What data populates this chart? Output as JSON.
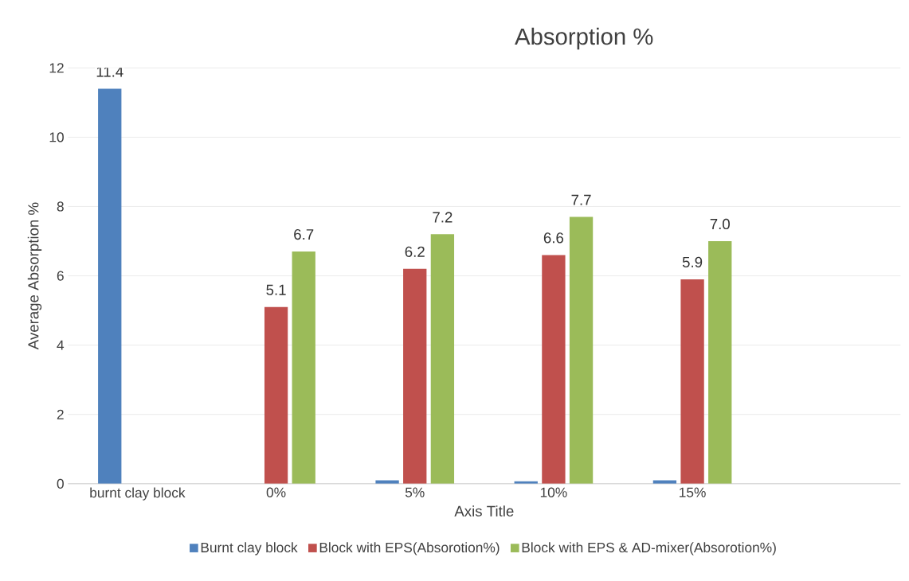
{
  "chart_data": {
    "type": "bar",
    "title": "Absorption %",
    "xlabel": "Axis Title",
    "ylabel": "Average Absorption %",
    "categories": [
      "burnt clay block",
      "0%",
      "5%",
      "10%",
      "15%",
      null
    ],
    "series": [
      {
        "name": "Burnt clay block",
        "color": "#4f81bd",
        "values": [
          11.4,
          null,
          0.1,
          0.07,
          0.1,
          null
        ],
        "value_labels": [
          "11.4",
          null,
          null,
          null,
          null,
          null
        ]
      },
      {
        "name": "Block with EPS(Absorotion%)",
        "color": "#c0504d",
        "values": [
          null,
          5.1,
          6.2,
          6.6,
          5.9,
          null
        ],
        "value_labels": [
          null,
          "5.1",
          "6.2",
          "6.6",
          "5.9",
          null
        ]
      },
      {
        "name": "Block with EPS & AD-mixer(Absorotion%)",
        "color": "#9bbb59",
        "values": [
          null,
          6.7,
          7.2,
          7.7,
          7.0,
          null
        ],
        "value_labels": [
          null,
          "6.7",
          "7.2",
          "7.7",
          "7.0",
          null
        ]
      }
    ],
    "ylim": [
      0,
      12
    ],
    "yticks": [
      0,
      2,
      4,
      6,
      8,
      10,
      12
    ],
    "grid": "y",
    "legend": "bottom"
  }
}
